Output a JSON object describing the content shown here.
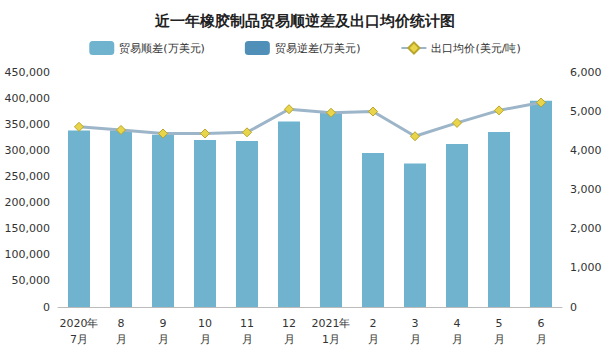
{
  "chart_data": {
    "type": "bar",
    "title": "近一年橡胶制品贸易顺逆差及出口均价统计图",
    "categories": [
      "2020年\n7月",
      "8\n月",
      "9\n月",
      "10\n月",
      "11\n月",
      "12\n月",
      "2021年\n1月",
      "2\n月",
      "3\n月",
      "4\n月",
      "5\n月",
      "6\n月"
    ],
    "series": [
      {
        "name": "贸易顺差(万美元)",
        "type": "bar",
        "color": "#6fb3cf",
        "values": [
          338000,
          338000,
          330000,
          320000,
          318000,
          355000,
          372000,
          295000,
          275000,
          312000,
          335000,
          395000
        ]
      },
      {
        "name": "贸易逆差(万美元)",
        "type": "bar",
        "color": "#4f8fb8",
        "values": [
          null,
          null,
          null,
          null,
          null,
          null,
          null,
          null,
          null,
          null,
          null,
          null
        ]
      },
      {
        "name": "出口均价(美元/吨)",
        "type": "line",
        "axis": "y2",
        "color": "#9db5c9",
        "marker": "diamond",
        "values": [
          4600,
          4520,
          4430,
          4430,
          4460,
          5050,
          4960,
          4990,
          4360,
          4700,
          5020,
          5220
        ]
      }
    ],
    "ylim": [
      0,
      450000
    ],
    "yticks": [
      0,
      {
        "value": 50000,
        "label": "50,000"
      },
      {
        "value": 100000,
        "label": "100,000"
      },
      {
        "value": 150000,
        "label": "150,000"
      },
      {
        "value": 200000,
        "label": "200,000"
      },
      {
        "value": 250000,
        "label": "250,000"
      },
      {
        "value": 300000,
        "label": "300,000"
      },
      {
        "value": 350000,
        "label": "350,000"
      },
      {
        "value": 400000,
        "label": "400,000"
      },
      {
        "value": 450000,
        "label": "450,000"
      }
    ],
    "y2lim": [
      0,
      6000
    ],
    "y2ticks": [
      0,
      {
        "value": 1000,
        "label": "1,000"
      },
      {
        "value": 2000,
        "label": "2,000"
      },
      {
        "value": 3000,
        "label": "3,000"
      },
      {
        "value": 4000,
        "label": "4,000"
      },
      {
        "value": 5000,
        "label": "5,000"
      },
      {
        "value": 6000,
        "label": "6,000"
      }
    ],
    "grid": false,
    "legend": "top"
  }
}
